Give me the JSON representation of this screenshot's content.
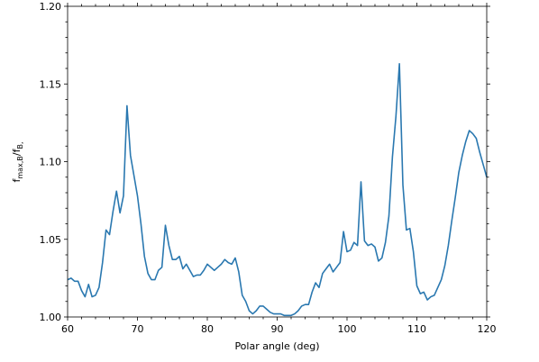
{
  "chart_data": {
    "type": "line",
    "x_label": "Polar angle (deg)",
    "y_label_parts": [
      "f",
      "max,B",
      "/f",
      "B,"
    ],
    "xlim": [
      60,
      120
    ],
    "xticks": [
      60,
      70,
      80,
      90,
      100,
      110,
      120
    ],
    "xminorticks": [
      62,
      64,
      66,
      68,
      72,
      74,
      76,
      78,
      82,
      84,
      86,
      88,
      92,
      94,
      96,
      98,
      102,
      104,
      106,
      108,
      112,
      114,
      116,
      118
    ],
    "ylim": [
      1.0,
      1.2
    ],
    "yticks": [
      {
        "value": 1.0,
        "label": "1.00"
      },
      1.05,
      {
        "value": 1.1,
        "label": "1.10"
      },
      1.15,
      {
        "value": 1.2,
        "label": "1.20"
      }
    ],
    "yminorticks": [
      1.01,
      1.02,
      1.03,
      1.04,
      1.06,
      1.07,
      1.08,
      1.09,
      1.11,
      1.12,
      1.13,
      1.14,
      1.16,
      1.17,
      1.18,
      1.19
    ],
    "mirror_ticks": true,
    "series": [
      {
        "color": "#2a78b0",
        "x": [
          60,
          60.5,
          61,
          61.5,
          62,
          62.5,
          63,
          63.5,
          64,
          64.5,
          65,
          65.5,
          66,
          66.5,
          67,
          67.5,
          68,
          68.5,
          69,
          69.5,
          70,
          70.5,
          71,
          71.5,
          72,
          72.5,
          73,
          73.5,
          74,
          74.5,
          75,
          75.5,
          76,
          76.5,
          77,
          77.5,
          78,
          78.5,
          79,
          79.5,
          80,
          80.5,
          81,
          81.5,
          82,
          82.5,
          83,
          83.5,
          84,
          84.5,
          85,
          85.5,
          86,
          86.5,
          87,
          87.5,
          88,
          88.5,
          89,
          89.5,
          90,
          90.5,
          91,
          91.5,
          92,
          92.5,
          93,
          93.5,
          94,
          94.5,
          95,
          95.5,
          96,
          96.5,
          97,
          97.5,
          98,
          98.5,
          99,
          99.5,
          100,
          100.5,
          101,
          101.5,
          102,
          102.5,
          103,
          103.5,
          104,
          104.5,
          105,
          105.5,
          106,
          106.5,
          107,
          107.5,
          108,
          108.5,
          109,
          109.5,
          110,
          110.5,
          111,
          111.5,
          112,
          112.5,
          113,
          113.5,
          114,
          114.5,
          115,
          115.5,
          116,
          116.5,
          117,
          117.5,
          118,
          118.5,
          119,
          119.5,
          120
        ],
        "values": [
          1.024,
          1.025,
          1.023,
          1.023,
          1.017,
          1.013,
          1.021,
          1.013,
          1.014,
          1.019,
          1.035,
          1.056,
          1.053,
          1.068,
          1.081,
          1.067,
          1.078,
          1.136,
          1.104,
          1.091,
          1.078,
          1.06,
          1.039,
          1.028,
          1.024,
          1.024,
          1.03,
          1.032,
          1.059,
          1.046,
          1.037,
          1.037,
          1.039,
          1.031,
          1.034,
          1.03,
          1.026,
          1.027,
          1.027,
          1.03,
          1.034,
          1.032,
          1.03,
          1.032,
          1.034,
          1.037,
          1.035,
          1.034,
          1.038,
          1.029,
          1.014,
          1.01,
          1.004,
          1.002,
          1.004,
          1.007,
          1.007,
          1.005,
          1.003,
          1.002,
          1.002,
          1.002,
          1.001,
          1.001,
          1.001,
          1.002,
          1.004,
          1.007,
          1.008,
          1.008,
          1.016,
          1.022,
          1.019,
          1.028,
          1.031,
          1.034,
          1.029,
          1.032,
          1.035,
          1.055,
          1.042,
          1.043,
          1.048,
          1.046,
          1.087,
          1.049,
          1.046,
          1.047,
          1.045,
          1.036,
          1.038,
          1.048,
          1.065,
          1.103,
          1.129,
          1.163,
          1.085,
          1.056,
          1.057,
          1.042,
          1.02,
          1.015,
          1.016,
          1.011,
          1.013,
          1.014,
          1.019,
          1.024,
          1.033,
          1.046,
          1.062,
          1.077,
          1.093,
          1.104,
          1.113,
          1.12,
          1.118,
          1.115,
          1.106,
          1.098,
          1.09
        ]
      }
    ]
  }
}
